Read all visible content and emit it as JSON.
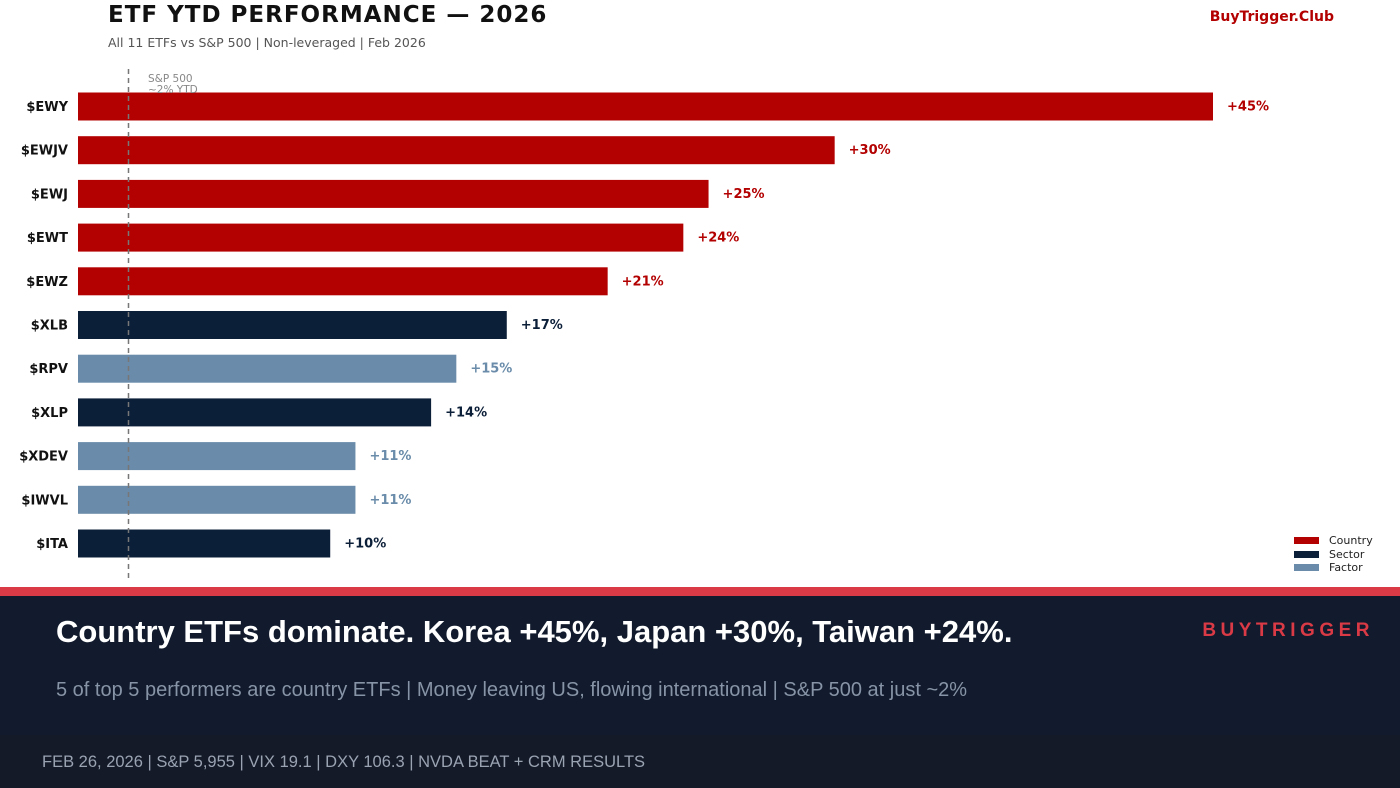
{
  "header": {
    "title": "ETF YTD PERFORMANCE — 2026",
    "subtitle": "All 11 ETFs vs S&P 500  |  Non-leveraged  |  Feb 2026",
    "brand": "BuyTrigger.Club"
  },
  "chart_data": {
    "type": "bar",
    "orientation": "horizontal",
    "title": "ETF YTD PERFORMANCE — 2026",
    "xlabel": "",
    "ylabel": "",
    "xlim": [
      -2,
      47
    ],
    "grid": false,
    "categories": [
      "$EWY",
      "$EWJV",
      "$EWJ",
      "$EWT",
      "$EWZ",
      "$XLB",
      "$RPV",
      "$XLP",
      "$XDEV",
      "$IWVL",
      "$ITA"
    ],
    "values": [
      45,
      30,
      25,
      24,
      21,
      17,
      15,
      14,
      11,
      11,
      10
    ],
    "value_labels": [
      "+45%",
      "+30%",
      "+25%",
      "+24%",
      "+21%",
      "+17%",
      "+15%",
      "+14%",
      "+11%",
      "+11%",
      "+10%"
    ],
    "groups": [
      "Country",
      "Country",
      "Country",
      "Country",
      "Country",
      "Sector",
      "Factor",
      "Sector",
      "Factor",
      "Factor",
      "Sector"
    ],
    "reference_line": {
      "value": 0,
      "label_line1": "S&P 500",
      "label_line2": "~2% YTD"
    },
    "legend": {
      "position": "bottom-right",
      "items": [
        {
          "name": "Country",
          "color": "#b30000"
        },
        {
          "name": "Sector",
          "color": "#0c1f38"
        },
        {
          "name": "Factor",
          "color": "#6a8caa"
        }
      ]
    }
  },
  "banner": {
    "headline": "Country ETFs dominate. Korea +45%, Japan +30%, Taiwan +24%.",
    "brand": "BUYTRIGGER",
    "subline": "5 of top 5 performers are country ETFs  |  Money leaving US, flowing international  |  S&P 500 at just ~2%"
  },
  "footer": {
    "text": "FEB 26, 2026  |  S&P 5,955  |  VIX 19.1  |  DXY 106.3  |  NVDA BEAT + CRM RESULTS"
  },
  "colors": {
    "country": "#b30000",
    "sector": "#0c1f38",
    "factor": "#6a8caa",
    "accent_red": "#d93a45",
    "banner_bg": "#111b2d",
    "footer_bg": "#141a28"
  }
}
